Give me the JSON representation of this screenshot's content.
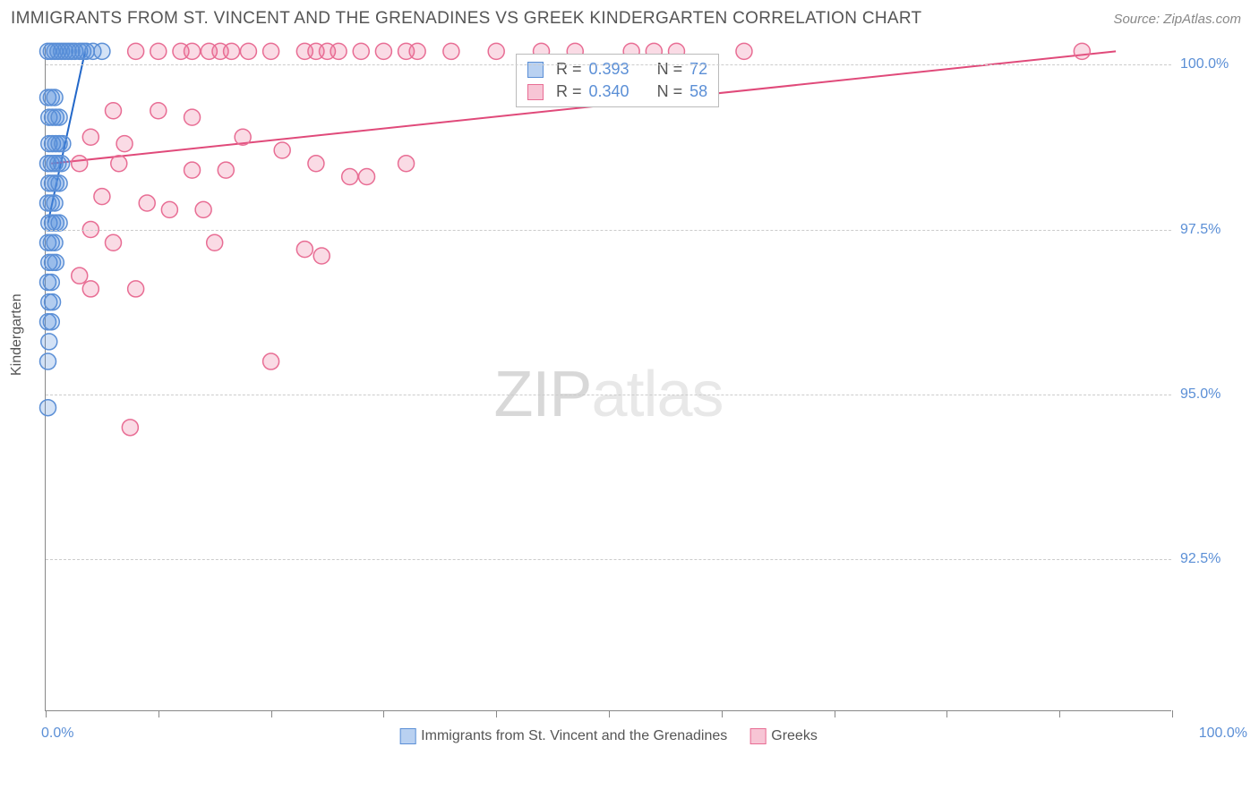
{
  "header": {
    "title": "IMMIGRANTS FROM ST. VINCENT AND THE GRENADINES VS GREEK KINDERGARTEN CORRELATION CHART",
    "source": "Source: ZipAtlas.com"
  },
  "chart": {
    "type": "scatter",
    "ylabel": "Kindergarten",
    "xlim": [
      0,
      100
    ],
    "ylim": [
      90.2,
      100.3
    ],
    "yticks": [
      {
        "value": 92.5,
        "label": "92.5%"
      },
      {
        "value": 95.0,
        "label": "95.0%"
      },
      {
        "value": 97.5,
        "label": "97.5%"
      },
      {
        "value": 100.0,
        "label": "100.0%"
      }
    ],
    "xticks": [
      0,
      10,
      20,
      30,
      40,
      50,
      60,
      70,
      80,
      90,
      100
    ],
    "xaxis_label_left": "0.0%",
    "xaxis_label_right": "100.0%",
    "background_color": "#ffffff",
    "grid_color": "#cccccc",
    "axis_color": "#888888",
    "marker_radius": 9,
    "marker_stroke_width": 1.5,
    "series": [
      {
        "name": "Immigrants from St. Vincent and the Grenadines",
        "color_fill": "rgba(80,140,220,0.25)",
        "color_stroke": "#5b8fd6",
        "R": "0.393",
        "N": "72",
        "trend": {
          "x1": 0.2,
          "y1": 97.6,
          "x2": 3.5,
          "y2": 100.2,
          "stroke": "#2368c9",
          "width": 2
        },
        "points": [
          [
            0.2,
            100.2
          ],
          [
            0.5,
            100.2
          ],
          [
            0.8,
            100.2
          ],
          [
            1.1,
            100.2
          ],
          [
            1.4,
            100.2
          ],
          [
            1.7,
            100.2
          ],
          [
            2.0,
            100.2
          ],
          [
            2.3,
            100.2
          ],
          [
            2.6,
            100.2
          ],
          [
            3.0,
            100.2
          ],
          [
            3.3,
            100.2
          ],
          [
            3.6,
            100.2
          ],
          [
            0.3,
            99.2
          ],
          [
            0.6,
            99.2
          ],
          [
            0.9,
            99.2
          ],
          [
            1.2,
            99.2
          ],
          [
            0.2,
            99.5
          ],
          [
            0.5,
            99.5
          ],
          [
            0.8,
            99.5
          ],
          [
            0.3,
            98.8
          ],
          [
            0.6,
            98.8
          ],
          [
            0.9,
            98.8
          ],
          [
            1.2,
            98.8
          ],
          [
            1.5,
            98.8
          ],
          [
            0.2,
            98.5
          ],
          [
            0.5,
            98.5
          ],
          [
            0.8,
            98.5
          ],
          [
            1.1,
            98.5
          ],
          [
            1.4,
            98.5
          ],
          [
            0.3,
            98.2
          ],
          [
            0.6,
            98.2
          ],
          [
            0.9,
            98.2
          ],
          [
            1.2,
            98.2
          ],
          [
            0.2,
            97.9
          ],
          [
            0.5,
            97.9
          ],
          [
            0.8,
            97.9
          ],
          [
            0.3,
            97.6
          ],
          [
            0.6,
            97.6
          ],
          [
            0.9,
            97.6
          ],
          [
            1.2,
            97.6
          ],
          [
            0.2,
            97.3
          ],
          [
            0.5,
            97.3
          ],
          [
            0.8,
            97.3
          ],
          [
            0.3,
            97.0
          ],
          [
            0.6,
            97.0
          ],
          [
            0.9,
            97.0
          ],
          [
            0.2,
            96.7
          ],
          [
            0.5,
            96.7
          ],
          [
            0.3,
            96.4
          ],
          [
            0.6,
            96.4
          ],
          [
            0.2,
            96.1
          ],
          [
            0.5,
            96.1
          ],
          [
            0.3,
            95.8
          ],
          [
            0.2,
            95.5
          ],
          [
            0.2,
            94.8
          ],
          [
            4.2,
            100.2
          ],
          [
            5.0,
            100.2
          ]
        ]
      },
      {
        "name": "Greeks",
        "color_fill": "rgba(235,110,150,0.25)",
        "color_stroke": "#e86d94",
        "R": "0.340",
        "N": "58",
        "trend": {
          "x1": 0.5,
          "y1": 98.5,
          "x2": 95,
          "y2": 100.2,
          "stroke": "#e04a7a",
          "width": 2
        },
        "points": [
          [
            8,
            100.2
          ],
          [
            10,
            100.2
          ],
          [
            12,
            100.2
          ],
          [
            13,
            100.2
          ],
          [
            14.5,
            100.2
          ],
          [
            15.5,
            100.2
          ],
          [
            16.5,
            100.2
          ],
          [
            18,
            100.2
          ],
          [
            20,
            100.2
          ],
          [
            23,
            100.2
          ],
          [
            24,
            100.2
          ],
          [
            25,
            100.2
          ],
          [
            26,
            100.2
          ],
          [
            28,
            100.2
          ],
          [
            30,
            100.2
          ],
          [
            32,
            100.2
          ],
          [
            33,
            100.2
          ],
          [
            36,
            100.2
          ],
          [
            40,
            100.2
          ],
          [
            44,
            100.2
          ],
          [
            47,
            100.2
          ],
          [
            52,
            100.2
          ],
          [
            54,
            100.2
          ],
          [
            56,
            100.2
          ],
          [
            62,
            100.2
          ],
          [
            92,
            100.2
          ],
          [
            6,
            99.3
          ],
          [
            10,
            99.3
          ],
          [
            13,
            99.2
          ],
          [
            4,
            98.9
          ],
          [
            7,
            98.8
          ],
          [
            17.5,
            98.9
          ],
          [
            21,
            98.7
          ],
          [
            3,
            98.5
          ],
          [
            6.5,
            98.5
          ],
          [
            13,
            98.4
          ],
          [
            16,
            98.4
          ],
          [
            24,
            98.5
          ],
          [
            27,
            98.3
          ],
          [
            28.5,
            98.3
          ],
          [
            32,
            98.5
          ],
          [
            5,
            98.0
          ],
          [
            9,
            97.9
          ],
          [
            11,
            97.8
          ],
          [
            14,
            97.8
          ],
          [
            4,
            97.5
          ],
          [
            6,
            97.3
          ],
          [
            15,
            97.3
          ],
          [
            23,
            97.2
          ],
          [
            24.5,
            97.1
          ],
          [
            3,
            96.8
          ],
          [
            4,
            96.6
          ],
          [
            8,
            96.6
          ],
          [
            20,
            95.5
          ],
          [
            7.5,
            94.5
          ]
        ]
      }
    ],
    "correlation_box": {
      "rows": [
        {
          "swatch_fill": "rgba(80,140,220,0.4)",
          "swatch_stroke": "#5b8fd6",
          "r_label": "R =",
          "r_val": "0.393",
          "n_label": "N =",
          "n_val": "72"
        },
        {
          "swatch_fill": "rgba(235,110,150,0.4)",
          "swatch_stroke": "#e86d94",
          "r_label": "R =",
          "r_val": "0.340",
          "n_label": "N =",
          "n_val": "58"
        }
      ]
    },
    "legend_bottom": [
      {
        "swatch_fill": "rgba(80,140,220,0.4)",
        "swatch_stroke": "#5b8fd6",
        "label": "Immigrants from St. Vincent and the Grenadines"
      },
      {
        "swatch_fill": "rgba(235,110,150,0.4)",
        "swatch_stroke": "#e86d94",
        "label": "Greeks"
      }
    ],
    "watermark": {
      "zip": "ZIP",
      "atlas": "atlas"
    }
  }
}
